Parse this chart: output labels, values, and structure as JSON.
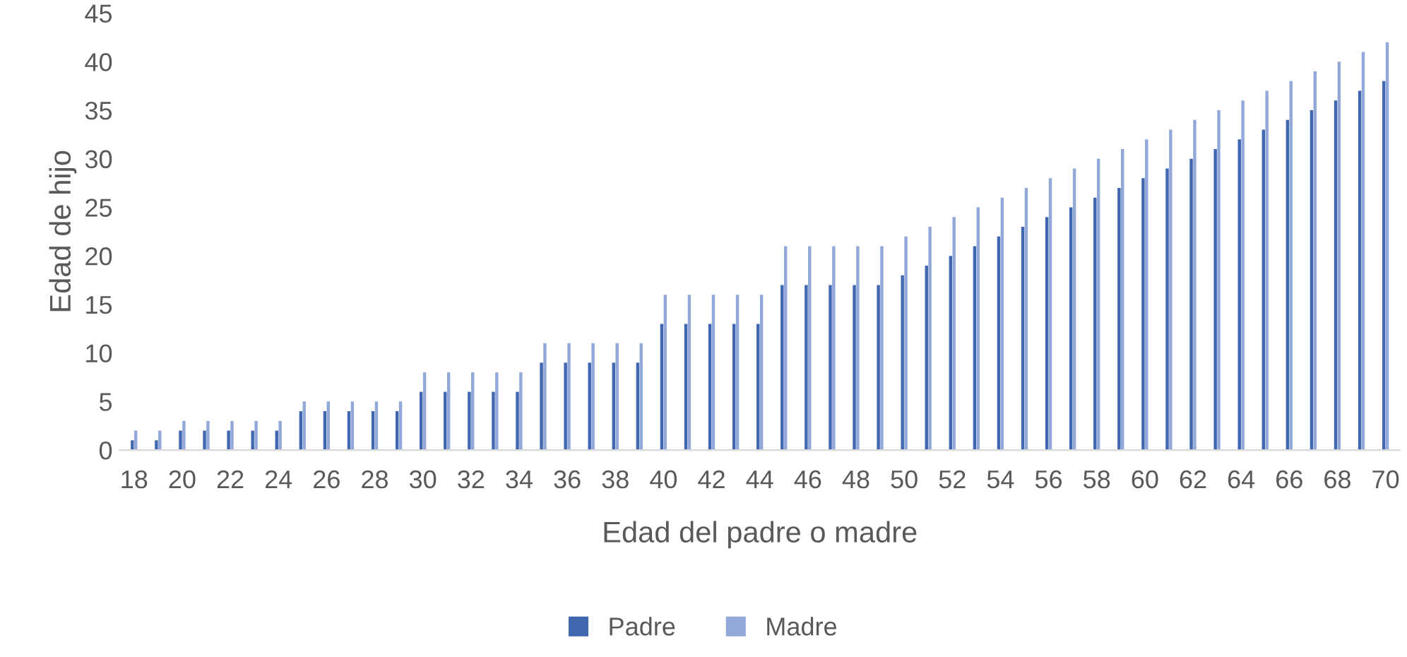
{
  "chart_data": {
    "type": "bar",
    "xlabel": "Edad del padre o madre",
    "ylabel": "Edad de hijo",
    "categories": [
      "18",
      null,
      "20",
      null,
      "22",
      null,
      "24",
      null,
      "26",
      null,
      "28",
      null,
      "30",
      null,
      "32",
      null,
      "34",
      null,
      "36",
      null,
      "38",
      null,
      "40",
      null,
      "42",
      null,
      "44",
      null,
      "46",
      null,
      "48",
      null,
      "50",
      null,
      "52",
      null,
      "54",
      null,
      "56",
      null,
      "58",
      null,
      "60",
      null,
      "62",
      null,
      "64",
      null,
      "66",
      null,
      "68",
      null,
      "70"
    ],
    "series": [
      {
        "name": "Padre",
        "color": "#4067b0",
        "values": [
          1,
          1,
          2,
          2,
          2,
          2,
          2,
          4,
          4,
          4,
          4,
          4,
          6,
          6,
          6,
          6,
          6,
          9,
          9,
          9,
          9,
          9,
          13,
          13,
          13,
          13,
          13,
          17,
          17,
          17,
          17,
          17,
          18,
          19,
          20,
          21,
          22,
          23,
          24,
          25,
          26,
          27,
          28,
          29,
          30,
          31,
          32,
          33,
          34,
          35,
          36,
          37,
          38
        ]
      },
      {
        "name": "Madre",
        "color": "#91a8d9",
        "values": [
          2,
          2,
          3,
          3,
          3,
          3,
          3,
          5,
          5,
          5,
          5,
          5,
          8,
          8,
          8,
          8,
          8,
          11,
          11,
          11,
          11,
          11,
          16,
          16,
          16,
          16,
          16,
          21,
          21,
          21,
          21,
          21,
          22,
          23,
          24,
          25,
          26,
          27,
          28,
          29,
          30,
          31,
          32,
          33,
          34,
          35,
          36,
          37,
          38,
          39,
          40,
          41,
          42
        ]
      }
    ],
    "ylim": [
      0,
      45
    ],
    "yticks": [
      0,
      5,
      10,
      15,
      20,
      25,
      30,
      35,
      40,
      45
    ],
    "grid": false,
    "legend": "bottom"
  }
}
